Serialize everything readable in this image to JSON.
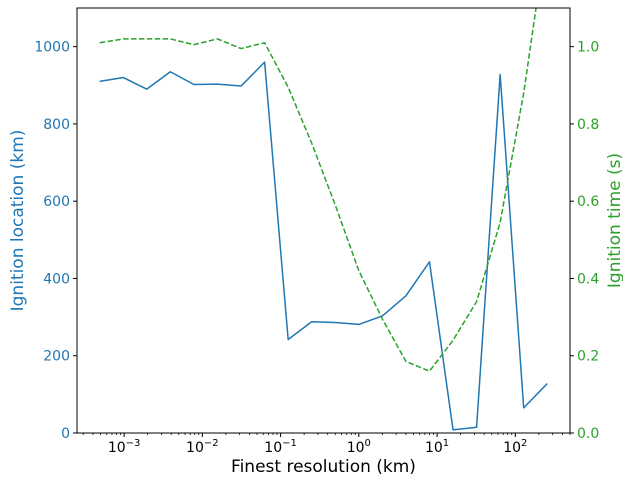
{
  "chart_data": {
    "type": "line",
    "xlabel": "Finest resolution (km)",
    "xscale": "log",
    "xlim": [
      0.00025,
      500
    ],
    "x_ticks": [
      {
        "value": 0.001,
        "base": "10",
        "exp": "−3"
      },
      {
        "value": 0.01,
        "base": "10",
        "exp": "−2"
      },
      {
        "value": 0.1,
        "base": "10",
        "exp": "−1"
      },
      {
        "value": 1,
        "base": "10",
        "exp": "0"
      },
      {
        "value": 10,
        "base": "10",
        "exp": "1"
      },
      {
        "value": 100,
        "base": "10",
        "exp": "2"
      }
    ],
    "y_left": {
      "label": "Ignition location (km)",
      "lim": [
        0,
        1100
      ],
      "ticks": [
        "0",
        "200",
        "400",
        "600",
        "800",
        "1000"
      ],
      "color": "#1f77b4"
    },
    "y_right": {
      "label": "Ignition time (s)",
      "lim": [
        0,
        1.1
      ],
      "ticks": [
        "0.0",
        "0.2",
        "0.4",
        "0.6",
        "0.8",
        "1.0"
      ],
      "color": "#2ca02c"
    },
    "grid": false,
    "series": [
      {
        "axis": "left",
        "style": "solid",
        "color": "#1f77b4",
        "x": [
          0.000488,
          0.000977,
          0.00195,
          0.0039,
          0.0078,
          0.0156,
          0.0313,
          0.0625,
          0.125,
          0.25,
          0.5,
          1,
          2,
          4,
          8,
          16,
          32,
          64,
          128,
          256
        ],
        "y": [
          910,
          920,
          890,
          935,
          902,
          903,
          898,
          960,
          242,
          288,
          286,
          281,
          303,
          355,
          443,
          8,
          15,
          928,
          65,
          128
        ]
      },
      {
        "axis": "right",
        "style": "dashed",
        "color": "#2ca02c",
        "x": [
          0.000488,
          0.000977,
          0.00195,
          0.0039,
          0.0078,
          0.0156,
          0.0313,
          0.0625,
          0.125,
          0.25,
          0.5,
          1,
          2,
          4,
          8,
          16,
          32,
          64,
          128,
          256
        ],
        "y": [
          1.01,
          1.02,
          1.02,
          1.02,
          1.005,
          1.02,
          0.995,
          1.01,
          0.895,
          0.75,
          0.59,
          0.42,
          0.295,
          0.185,
          0.16,
          0.24,
          0.34,
          0.545,
          0.88,
          1.3
        ]
      }
    ]
  }
}
